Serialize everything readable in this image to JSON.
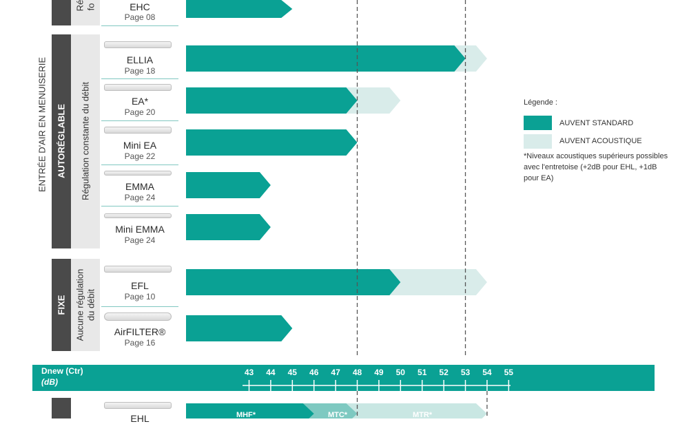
{
  "labels": {
    "entree": "ENTRÉE D'AIR EN MENUISERIE",
    "autoreglable": "AUTORÉGLABLE",
    "regulation": "Régulation constante du débit",
    "fixe": "FIXE",
    "aucune_1": "Aucune régulation",
    "aucune_2": "du débit",
    "top_1": "Ré",
    "top_2": "fo"
  },
  "legend": {
    "title": "Légende :",
    "standard": "AUVENT STANDARD",
    "acoustique": "AUVENT ACOUSTIQUE",
    "note": "*Niveaux acoustiques supérieurs possibles avec l'entretoise (+2dB pour EHL, +1dB pour EA)"
  },
  "colors": {
    "standard": "#0aa194",
    "acoustique": "#d9ecea",
    "dark": "#4a4a4a",
    "axis": "#0aa194"
  },
  "axis": {
    "label_1": "Dnew (Ctr)",
    "label_2": "(dB)"
  },
  "bottom_labels": {
    "mhf": "MHF*",
    "mtc": "MTC*",
    "mtr": "MTR*"
  },
  "chart_data": {
    "type": "bar",
    "xlabel": "Dnew (Ctr) (dB)",
    "ticks": [
      43,
      44,
      45,
      46,
      47,
      48,
      49,
      50,
      51,
      52,
      53,
      54,
      55
    ],
    "xlim": [
      40,
      55
    ],
    "reference_lines": [
      48,
      53,
      54
    ],
    "products": [
      {
        "name": "EHC",
        "page": "Page 08",
        "standard": 45,
        "acoustique": null
      },
      {
        "name": "ELLIA",
        "page": "Page 18",
        "standard": 53,
        "acoustique": 54
      },
      {
        "name": "EA*",
        "page": "Page 20",
        "standard": 48,
        "acoustique": 50
      },
      {
        "name": "Mini EA",
        "page": "Page 22",
        "standard": 48,
        "acoustique": null
      },
      {
        "name": "EMMA",
        "page": "Page 24",
        "standard": 44,
        "acoustique": null
      },
      {
        "name": "Mini EMMA",
        "page": "Page 24",
        "standard": 44,
        "acoustique": null
      },
      {
        "name": "EFL",
        "page": "Page 10",
        "standard": 50,
        "acoustique": 54
      },
      {
        "name": "AirFILTER®",
        "page": "Page 16",
        "standard": 45,
        "acoustique": null
      }
    ],
    "bottom_product": {
      "name": "EHL",
      "segments": [
        {
          "label": "MHF*",
          "end": 46
        },
        {
          "label": "MTC*",
          "end": 48
        },
        {
          "label": "MTR*",
          "end": 54
        }
      ]
    }
  }
}
